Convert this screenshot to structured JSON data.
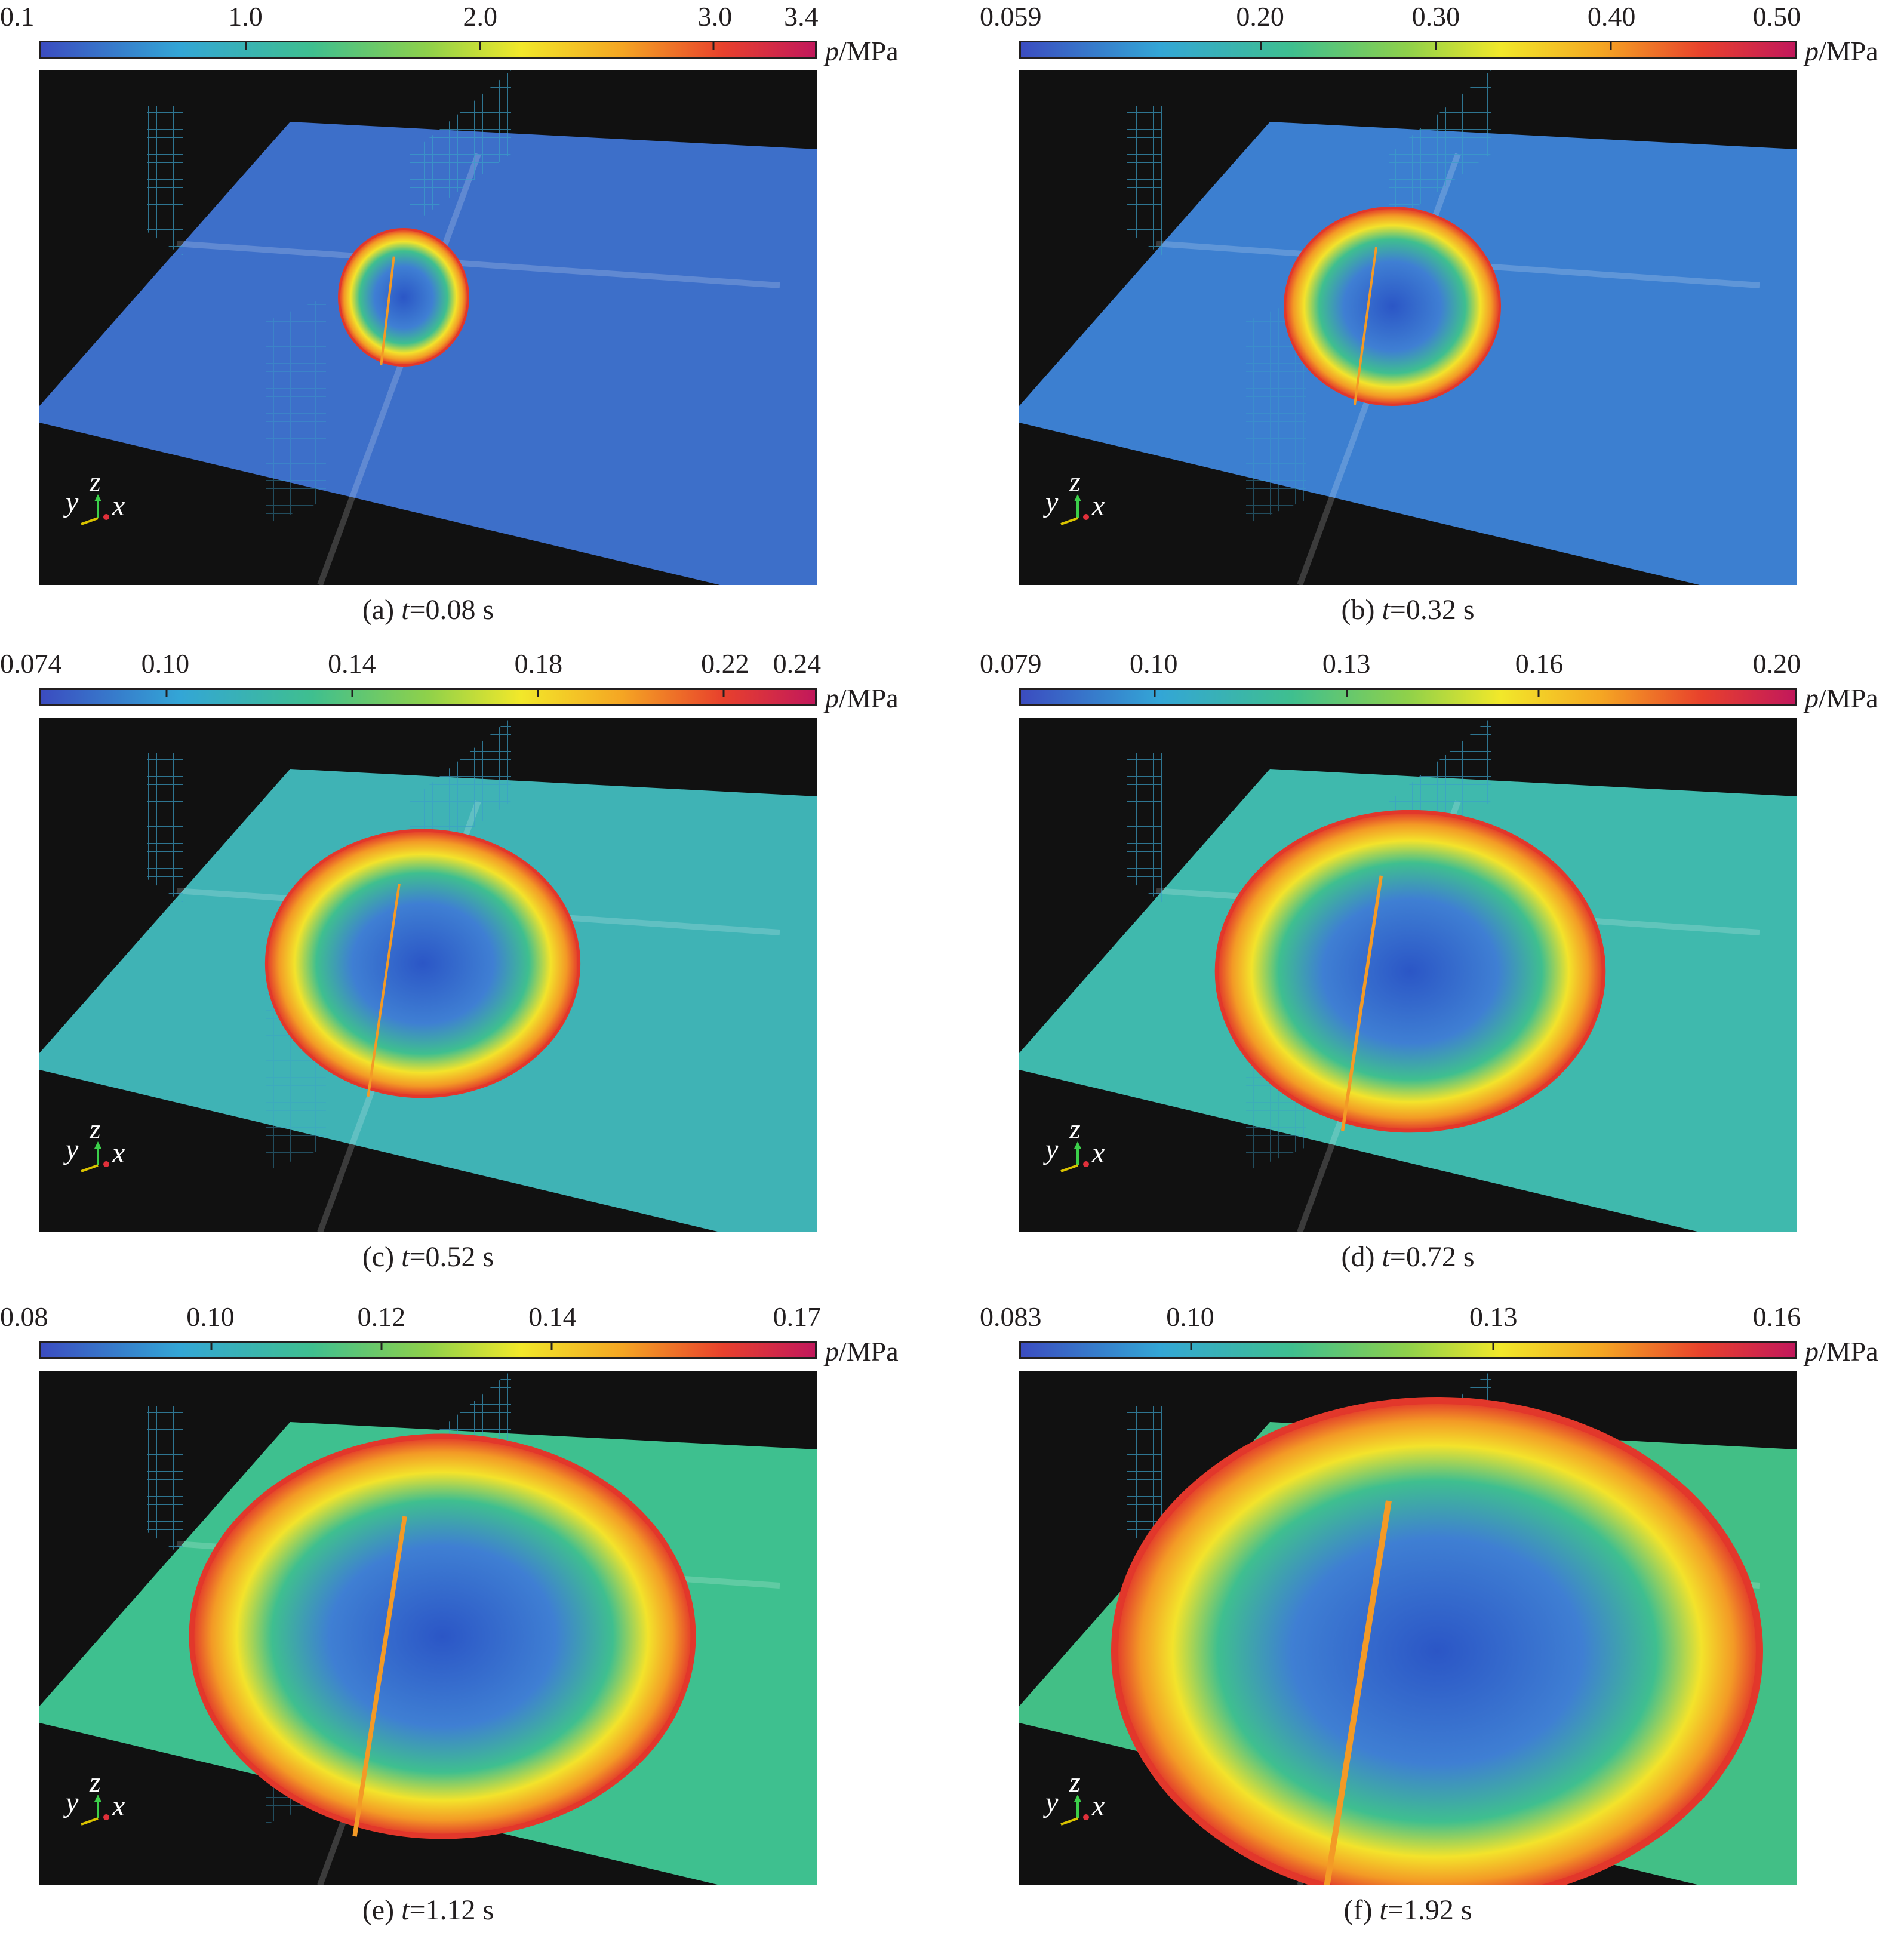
{
  "unit_var": "p",
  "unit_rest": "/MPa",
  "axis_labels": {
    "x": "x",
    "y": "y",
    "z": "z"
  },
  "panels": [
    {
      "caption_prefix": "(a) ",
      "caption_var": "t",
      "caption_value": "=0.08 s",
      "ticks": [
        "0.1",
        "1.0",
        "2.0",
        "3.0",
        "3.4"
      ],
      "tick_fracs": [
        0,
        0.265,
        0.567,
        0.869,
        0.991
      ],
      "surface_color": "#3d6fc9",
      "front_progress": 0.1
    },
    {
      "caption_prefix": "(b) ",
      "caption_var": "t",
      "caption_value": "=0.32 s",
      "ticks": [
        "0.059",
        "0.20",
        "0.30",
        "0.40",
        "0.50"
      ],
      "tick_fracs": [
        0,
        0.31,
        0.536,
        0.762,
        0.99
      ],
      "surface_color": "#3c7fd0",
      "front_progress": 0.25
    },
    {
      "caption_prefix": "(c) ",
      "caption_var": "t",
      "caption_value": "=0.52 s",
      "ticks": [
        "0.074",
        "0.10",
        "0.14",
        "0.18",
        "0.22",
        "0.24"
      ],
      "tick_fracs": [
        0,
        0.162,
        0.402,
        0.642,
        0.882,
        0.99
      ],
      "surface_color": "#3fb3b5",
      "front_progress": 0.42
    },
    {
      "caption_prefix": "(d) ",
      "caption_var": "t",
      "caption_value": "=0.72 s",
      "ticks": [
        "0.079",
        "0.10",
        "0.13",
        "0.16",
        "0.20"
      ],
      "tick_fracs": [
        0,
        0.173,
        0.421,
        0.669,
        0.99
      ],
      "surface_color": "#3fb9ad",
      "front_progress": 0.55
    },
    {
      "caption_prefix": "(e) ",
      "caption_var": "t",
      "caption_value": "=1.12 s",
      "ticks": [
        "0.08",
        "0.10",
        "0.12",
        "0.14",
        "0.17"
      ],
      "tick_fracs": [
        0,
        0.22,
        0.44,
        0.66,
        0.99
      ],
      "surface_color": "#3ec08f",
      "front_progress": 0.75
    },
    {
      "caption_prefix": "(f) ",
      "caption_var": "t",
      "caption_value": "=1.92 s",
      "ticks": [
        "0.083",
        "0.10",
        "0.13",
        "0.16"
      ],
      "tick_fracs": [
        0,
        0.22,
        0.61,
        0.99
      ],
      "surface_color": "#42bf86",
      "front_progress": 1.0
    }
  ]
}
